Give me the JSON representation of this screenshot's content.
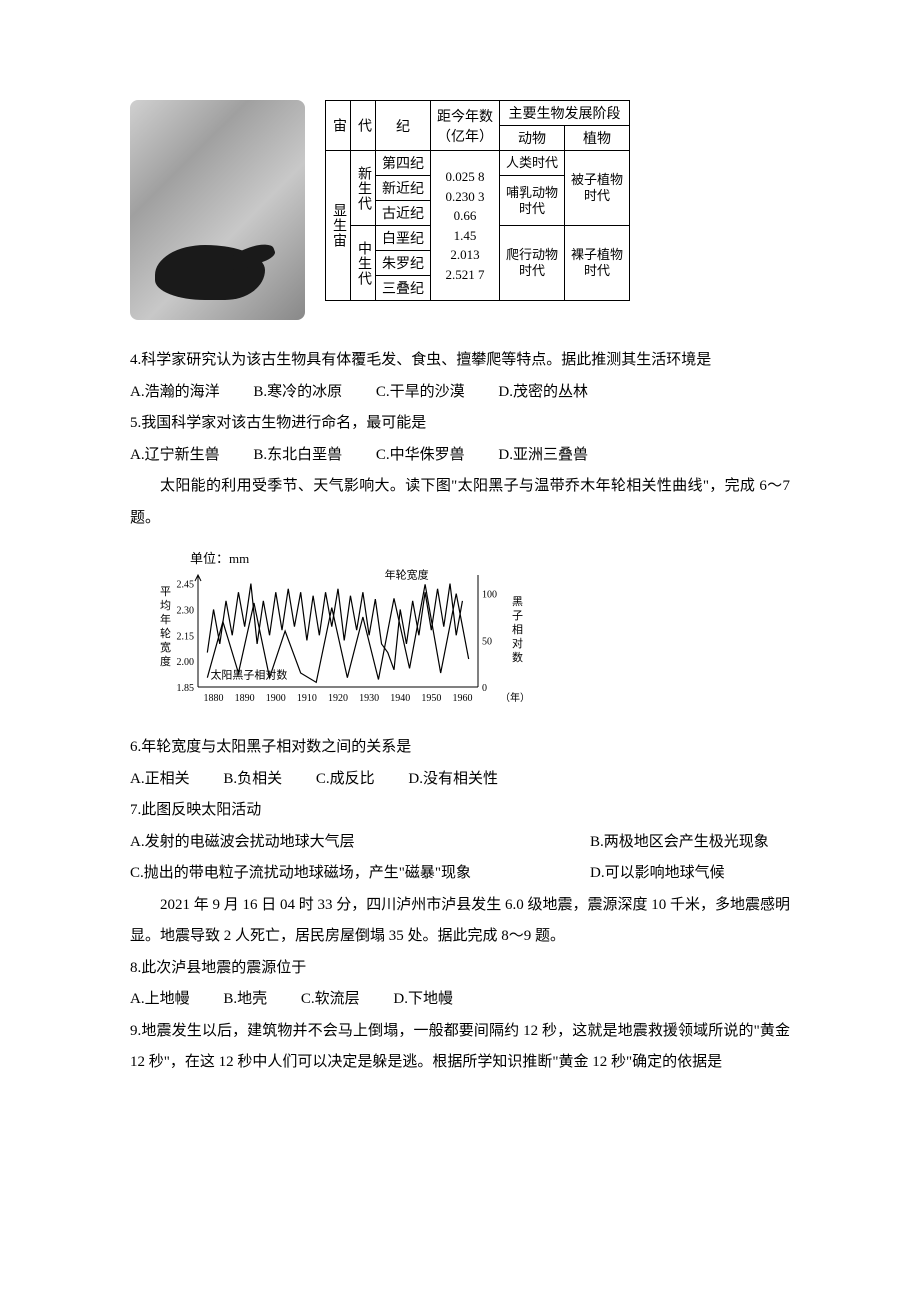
{
  "figure": {
    "geo_table": {
      "headers": {
        "eon": "宙",
        "era": "代",
        "period": "纪",
        "years": "距今年数\n（亿年）",
        "bio_stage": "主要生物发展阶段",
        "animal": "动物",
        "plant": "植物"
      },
      "eon_label": "显生宙",
      "eras": [
        {
          "label": "新生代",
          "periods": [
            "第四纪",
            "新近纪",
            "古近纪"
          ]
        },
        {
          "label": "中生代",
          "periods": [
            "白垩纪",
            "朱罗纪",
            "三叠纪"
          ]
        }
      ],
      "year_marks": [
        "0.025 8",
        "0.230 3",
        "0.66",
        "1.45",
        "2.013",
        "2.521 7"
      ],
      "animal_stages": [
        "人类时代",
        "哺乳动物时代",
        "爬行动物时代"
      ],
      "plant_stages": [
        "被子植物时代",
        "裸子植物时代"
      ]
    }
  },
  "q4": {
    "stem": "4.科学家研究认为该古生物具有体覆毛发、食虫、擅攀爬等特点。据此推测其生活环境是",
    "opts": {
      "A": "A.浩瀚的海洋",
      "B": "B.寒冷的冰原",
      "C": "C.干旱的沙漠",
      "D": "D.茂密的丛林"
    }
  },
  "q5": {
    "stem": "5.我国科学家对该古生物进行命名，最可能是",
    "opts": {
      "A": "A.辽宁新生兽",
      "B": "B.东北白垩兽",
      "C": "C.中华侏罗兽",
      "D": "D.亚洲三叠兽"
    }
  },
  "intro67": "太阳能的利用受季节、天气影响大。读下图\"太阳黑子与温带乔木年轮相关性曲线\"，完成 6～7 题。",
  "chart": {
    "unit_label": "单位：mm",
    "y_left_label": "平均年轮宽度",
    "y_left_ticks": [
      "2.45",
      "2.30",
      "2.15",
      "2.00",
      "1.85"
    ],
    "y_right_label": "黑子相对数",
    "y_right_ticks": [
      "100",
      "50",
      "0"
    ],
    "x_ticks": [
      "1880",
      "1890",
      "1900",
      "1910",
      "1920",
      "1930",
      "1940",
      "1950",
      "1960"
    ],
    "x_suffix": "（年）",
    "series1_label": "年轮宽度",
    "series2_label": "太阳黑子相对数",
    "colors": {
      "line": "#000000",
      "axis": "#000000",
      "bg": "#ffffff"
    },
    "line_width": 1.2,
    "xlim": [
      1875,
      1965
    ],
    "ylim_left": [
      1.85,
      2.5
    ],
    "ylim_right": [
      0,
      120
    ],
    "ring_data": [
      [
        1878,
        2.05
      ],
      [
        1880,
        2.3
      ],
      [
        1882,
        2.1
      ],
      [
        1884,
        2.35
      ],
      [
        1886,
        2.15
      ],
      [
        1888,
        2.4
      ],
      [
        1890,
        2.2
      ],
      [
        1892,
        2.45
      ],
      [
        1894,
        2.1
      ],
      [
        1896,
        2.35
      ],
      [
        1898,
        2.15
      ],
      [
        1900,
        2.4
      ],
      [
        1902,
        2.18
      ],
      [
        1904,
        2.42
      ],
      [
        1906,
        2.2
      ],
      [
        1908,
        2.4
      ],
      [
        1910,
        2.12
      ],
      [
        1912,
        2.38
      ],
      [
        1914,
        2.15
      ],
      [
        1916,
        2.4
      ],
      [
        1918,
        2.2
      ],
      [
        1920,
        2.42
      ],
      [
        1922,
        2.12
      ],
      [
        1924,
        2.38
      ],
      [
        1926,
        2.18
      ],
      [
        1928,
        2.4
      ],
      [
        1930,
        2.15
      ],
      [
        1932,
        2.36
      ],
      [
        1934,
        2.1
      ],
      [
        1936,
        2.05
      ],
      [
        1938,
        1.95
      ],
      [
        1940,
        2.3
      ],
      [
        1942,
        2.1
      ],
      [
        1944,
        2.35
      ],
      [
        1946,
        2.15
      ],
      [
        1948,
        2.4
      ],
      [
        1950,
        2.18
      ],
      [
        1952,
        2.42
      ],
      [
        1954,
        2.2
      ],
      [
        1956,
        2.45
      ],
      [
        1958,
        2.15
      ],
      [
        1960,
        2.35
      ]
    ],
    "sunspot_data": [
      [
        1878,
        10
      ],
      [
        1883,
        70
      ],
      [
        1888,
        15
      ],
      [
        1893,
        90
      ],
      [
        1898,
        10
      ],
      [
        1903,
        60
      ],
      [
        1908,
        15
      ],
      [
        1913,
        5
      ],
      [
        1918,
        85
      ],
      [
        1923,
        10
      ],
      [
        1928,
        75
      ],
      [
        1933,
        8
      ],
      [
        1938,
        95
      ],
      [
        1943,
        20
      ],
      [
        1948,
        110
      ],
      [
        1953,
        15
      ],
      [
        1958,
        100
      ],
      [
        1962,
        30
      ]
    ]
  },
  "q6": {
    "stem": "6.年轮宽度与太阳黑子相对数之间的关系是",
    "opts": {
      "A": "A.正相关",
      "B": "B.负相关",
      "C": "C.成反比",
      "D": "D.没有相关性"
    }
  },
  "q7": {
    "stem": "7.此图反映太阳活动",
    "optsL": {
      "A": "A.发射的电磁波会扰动地球大气层",
      "C": "C.抛出的带电粒子流扰动地球磁场，产生\"磁暴\"现象"
    },
    "optsR": {
      "B": "B.两极地区会产生极光现象",
      "D": "D.可以影响地球气候"
    }
  },
  "intro89": "2021 年 9 月 16 日 04 时 33 分，四川泸州市泸县发生 6.0 级地震，震源深度 10 千米，多地震感明显。地震导致 2 人死亡，居民房屋倒塌 35 处。据此完成 8～9 题。",
  "q8": {
    "stem": "8.此次泸县地震的震源位于",
    "opts": {
      "A": "A.上地幔",
      "B": "B.地壳",
      "C": "C.软流层",
      "D": "D.下地幔"
    }
  },
  "q9": {
    "stem": "9.地震发生以后，建筑物并不会马上倒塌，一般都要间隔约 12 秒，这就是地震救援领域所说的\"黄金 12 秒\"，在这 12 秒中人们可以决定是躲是逃。根据所学知识推断\"黄金 12 秒\"确定的依据是"
  }
}
